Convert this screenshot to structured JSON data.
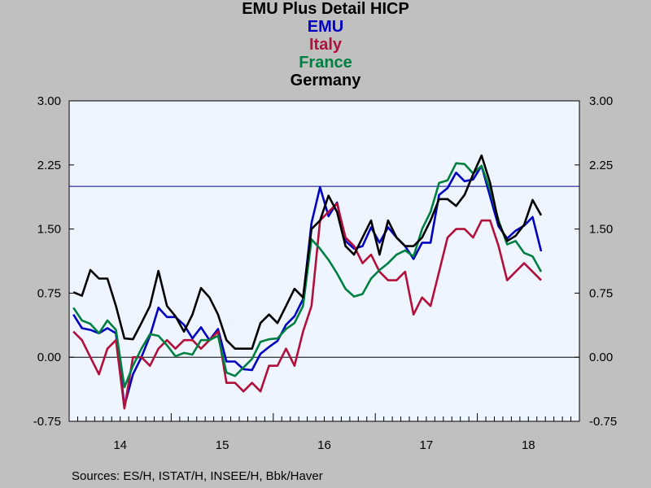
{
  "chart_data": {
    "type": "line",
    "title": "EMU Plus Detail HICP",
    "xlabel": "",
    "ylabel": "",
    "ylim": [
      -0.75,
      3.0
    ],
    "yticks": [
      "3.00",
      "2.25",
      "1.50",
      "0.75",
      "0.00",
      "-0.75"
    ],
    "ytick_values": [
      3.0,
      2.25,
      1.5,
      0.75,
      0.0,
      -0.75
    ],
    "x_start": "2014-01",
    "x_year_labels": [
      "14",
      "15",
      "16",
      "17",
      "18"
    ],
    "reference_line": 2.0,
    "grid": false,
    "background": "#eef5ff",
    "series": [
      {
        "name": "EMU",
        "color": "#0000c0",
        "values": [
          0.5,
          0.34,
          0.32,
          0.28,
          0.34,
          0.28,
          -0.57,
          -0.2,
          0.0,
          0.25,
          0.58,
          0.47,
          0.47,
          0.38,
          0.22,
          0.35,
          0.2,
          0.33,
          -0.05,
          -0.05,
          -0.14,
          -0.15,
          0.04,
          0.12,
          0.19,
          0.38,
          0.48,
          0.68,
          1.57,
          1.99,
          1.65,
          1.81,
          1.36,
          1.27,
          1.3,
          1.52,
          1.34,
          1.52,
          1.4,
          1.3,
          1.15,
          1.34,
          1.34,
          1.9,
          1.98,
          2.16,
          2.06,
          2.08,
          2.24,
          1.88,
          1.53,
          1.39,
          1.48,
          1.54,
          1.64,
          1.24
        ]
      },
      {
        "name": "Italy",
        "color": "#b0103a",
        "values": [
          0.3,
          0.2,
          0.0,
          -0.2,
          0.1,
          0.2,
          -0.6,
          0.0,
          0.0,
          -0.1,
          0.1,
          0.2,
          0.1,
          0.2,
          0.2,
          0.1,
          0.2,
          0.3,
          -0.3,
          -0.3,
          -0.4,
          -0.3,
          -0.4,
          -0.1,
          -0.1,
          0.1,
          -0.1,
          0.3,
          0.6,
          1.6,
          1.7,
          1.8,
          1.4,
          1.3,
          1.1,
          1.2,
          1.0,
          0.9,
          0.9,
          1.0,
          0.5,
          0.7,
          0.6,
          1.0,
          1.4,
          1.5,
          1.5,
          1.4,
          1.6,
          1.6,
          1.3,
          0.9,
          1.0,
          1.1,
          1.0,
          0.9
        ]
      },
      {
        "name": "France",
        "color": "#008040",
        "values": [
          0.58,
          0.43,
          0.39,
          0.28,
          0.43,
          0.32,
          -0.35,
          -0.1,
          0.1,
          0.27,
          0.25,
          0.14,
          0.01,
          0.05,
          0.03,
          0.2,
          0.2,
          0.25,
          -0.18,
          -0.22,
          -0.12,
          -0.02,
          0.18,
          0.21,
          0.22,
          0.33,
          0.4,
          0.6,
          1.38,
          1.27,
          1.14,
          0.98,
          0.8,
          0.71,
          0.74,
          0.92,
          1.02,
          1.1,
          1.2,
          1.25,
          1.18,
          1.5,
          1.7,
          2.04,
          2.07,
          2.27,
          2.26,
          2.15,
          2.24,
          1.96,
          1.6,
          1.32,
          1.36,
          1.22,
          1.18,
          1.0
        ]
      },
      {
        "name": "Germany",
        "color": "#000000",
        "values": [
          0.76,
          0.72,
          1.02,
          0.92,
          0.92,
          0.6,
          0.22,
          0.21,
          0.4,
          0.6,
          1.01,
          0.6,
          0.48,
          0.3,
          0.5,
          0.81,
          0.7,
          0.5,
          0.2,
          0.1,
          0.1,
          0.1,
          0.4,
          0.5,
          0.4,
          0.6,
          0.8,
          0.7,
          1.5,
          1.6,
          1.89,
          1.7,
          1.3,
          1.2,
          1.4,
          1.6,
          1.2,
          1.6,
          1.4,
          1.3,
          1.3,
          1.4,
          1.6,
          1.85,
          1.85,
          1.77,
          1.9,
          2.14,
          2.36,
          2.04,
          1.57,
          1.36,
          1.42,
          1.55,
          1.84,
          1.66
        ]
      }
    ]
  },
  "source_text": "Sources:  ES/H, ISTAT/H, INSEE/H, Bbk/Haver"
}
